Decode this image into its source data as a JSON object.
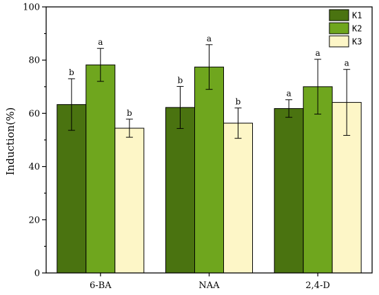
{
  "chart_data": {
    "type": "bar",
    "ylabel": "Induction(%)",
    "ylim": [
      0,
      100
    ],
    "yticks": [
      0,
      20,
      40,
      60,
      80,
      100
    ],
    "categories": [
      "6-BA",
      "NAA",
      "2,4-D"
    ],
    "series": [
      {
        "name": "K1",
        "color": "#4a7310",
        "values": [
          63.3,
          62.2,
          61.8
        ],
        "errors": [
          9.7,
          7.9,
          3.3
        ],
        "labels": [
          "b",
          "b",
          "a"
        ]
      },
      {
        "name": "K2",
        "color": "#6fa61e",
        "values": [
          78.2,
          77.4,
          70.0
        ],
        "errors": [
          6.2,
          8.4,
          10.3
        ],
        "labels": [
          "a",
          "a",
          "a"
        ]
      },
      {
        "name": "K3",
        "color": "#fdf6c7",
        "values": [
          54.4,
          56.3,
          64.1
        ],
        "errors": [
          3.4,
          5.7,
          12.4
        ],
        "labels": [
          "b",
          "b",
          "a"
        ]
      }
    ],
    "legend_position": "top-right",
    "grid": false
  }
}
